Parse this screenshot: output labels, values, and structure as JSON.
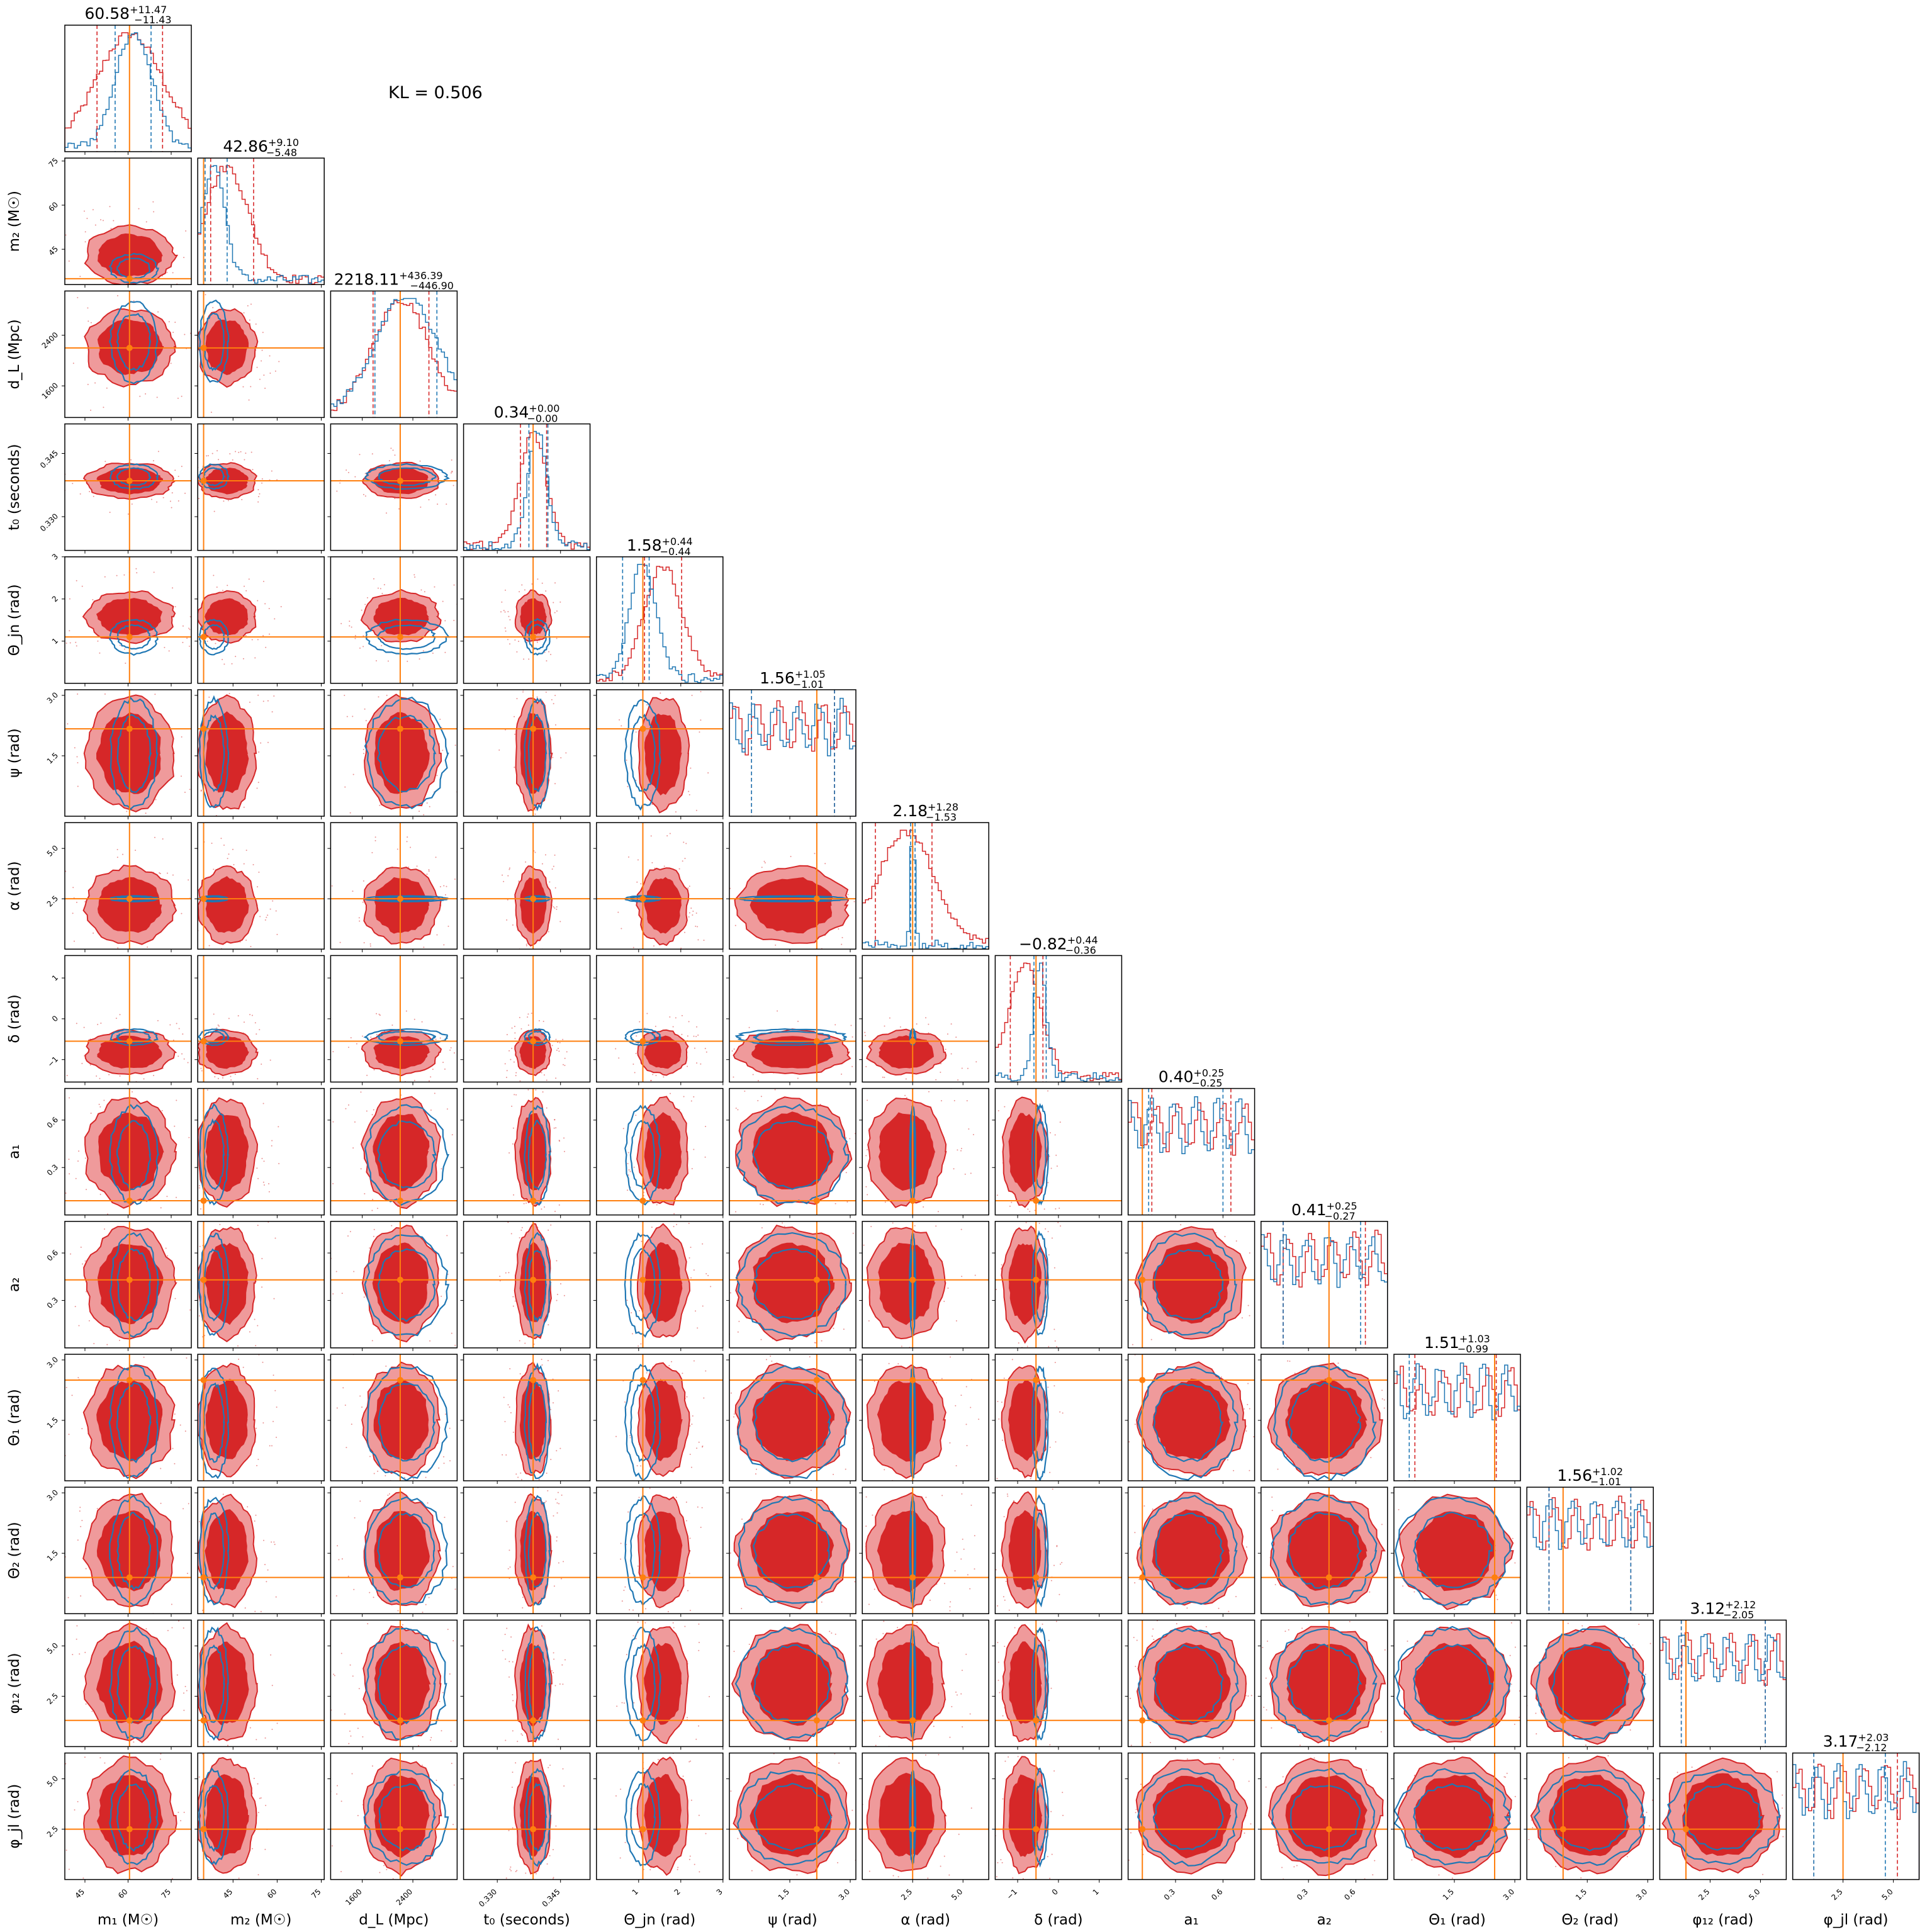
{
  "chart_data": {
    "type": "corner",
    "annotation": "KL = 0.506",
    "colors": {
      "approx": "#d62728",
      "reference": "#1f77b4",
      "truth": "#ff7f0e"
    },
    "parameters": [
      {
        "key": "m1",
        "label": "m₁ (M☉)",
        "center": "60.58",
        "plus": "+11.47",
        "minus": "−11.43",
        "lim": [
          38,
          82
        ],
        "ticks": [
          45,
          60,
          75
        ],
        "ticklabels": [
          "45",
          "60",
          "75"
        ],
        "truth": 60.5,
        "approx_q": [
          49.2,
          60.6,
          72.0
        ],
        "ref_q": [
          55.5,
          62.0,
          68.0
        ]
      },
      {
        "key": "m2",
        "label": "m₂ (M☉)",
        "center": "42.86",
        "plus": "+9.10",
        "minus": "−5.48",
        "lim": [
          33,
          76
        ],
        "ticks": [
          45,
          60,
          75
        ],
        "ticklabels": [
          "45",
          "60",
          "75"
        ],
        "truth": 35.0,
        "approx_q": [
          37.4,
          42.9,
          52.0
        ],
        "ref_q": [
          35.5,
          38.5,
          43.0
        ]
      },
      {
        "key": "dL",
        "label": "d_L (Mpc)",
        "center": "2218.11",
        "plus": "+436.39",
        "minus": "−446.90",
        "lim": [
          1100,
          3100
        ],
        "ticks": [
          1600,
          2400
        ],
        "ticklabels": [
          "1600",
          "2400"
        ],
        "truth": 2200,
        "approx_q": [
          1771,
          2218,
          2654
        ],
        "ref_q": [
          1800,
          2300,
          2780
        ]
      },
      {
        "key": "t0",
        "label": "t₀ (seconds)",
        "center": "0.34",
        "plus": "+0.00",
        "minus": "−0.00",
        "lim": [
          0.322,
          0.352
        ],
        "ticks": [
          0.33,
          0.345
        ],
        "ticklabels": [
          "0.330",
          "0.345"
        ],
        "truth": 0.3385,
        "approx_q": [
          0.3355,
          0.3385,
          0.3417
        ],
        "ref_q": [
          0.3375,
          0.3395,
          0.342
        ]
      },
      {
        "key": "thetajn",
        "label": "Θ_jn (rad)",
        "center": "1.58",
        "plus": "+0.44",
        "minus": "−0.44",
        "lim": [
          0,
          3
        ],
        "ticks": [
          1,
          2,
          3
        ],
        "ticklabels": [
          "1",
          "2",
          "3"
        ],
        "truth": 1.1,
        "approx_q": [
          1.14,
          1.58,
          2.02
        ],
        "ref_q": [
          0.62,
          1.1,
          1.25
        ]
      },
      {
        "key": "psi",
        "label": "ψ (rad)",
        "center": "1.56",
        "plus": "+1.05",
        "minus": "−1.01",
        "lim": [
          0,
          3.14
        ],
        "ticks": [
          1.5,
          3.0
        ],
        "ticklabels": [
          "1.5",
          "3.0"
        ],
        "truth": 2.17,
        "approx_q": [
          0.55,
          1.56,
          2.61
        ],
        "ref_q": [
          0.55,
          1.56,
          2.61
        ]
      },
      {
        "key": "alpha",
        "label": "α (rad)",
        "center": "2.18",
        "plus": "+1.28",
        "minus": "−1.53",
        "lim": [
          0,
          6.28
        ],
        "ticks": [
          2.5,
          5.0
        ],
        "ticklabels": [
          "2.5",
          "5.0"
        ],
        "truth": 2.5,
        "approx_q": [
          0.65,
          2.18,
          3.46
        ],
        "ref_q": [
          2.4,
          2.5,
          2.62
        ]
      },
      {
        "key": "delta",
        "label": "δ (rad)",
        "center": "−0.82",
        "plus": "+0.44",
        "minus": "−0.36",
        "lim": [
          -1.55,
          1.55
        ],
        "ticks": [
          -1,
          0,
          1
        ],
        "ticklabels": [
          "−1",
          "0",
          "1"
        ],
        "truth": -0.55,
        "approx_q": [
          -1.18,
          -0.82,
          -0.38
        ],
        "ref_q": [
          -0.6,
          -0.45,
          -0.3
        ]
      },
      {
        "key": "a1",
        "label": "a₁",
        "center": "0.40",
        "plus": "+0.25",
        "minus": "−0.25",
        "lim": [
          0,
          0.8
        ],
        "ticks": [
          0.3,
          0.6
        ],
        "ticklabels": [
          "0.3",
          "0.6"
        ],
        "truth": 0.09,
        "approx_q": [
          0.15,
          0.4,
          0.65
        ],
        "ref_q": [
          0.13,
          0.38,
          0.6
        ]
      },
      {
        "key": "a2",
        "label": "a₂",
        "center": "0.41",
        "plus": "+0.25",
        "minus": "−0.27",
        "lim": [
          0,
          0.8
        ],
        "ticks": [
          0.3,
          0.6
        ],
        "ticklabels": [
          "0.3",
          "0.6"
        ],
        "truth": 0.43,
        "approx_q": [
          0.14,
          0.41,
          0.66
        ],
        "ref_q": [
          0.14,
          0.4,
          0.63
        ]
      },
      {
        "key": "theta1",
        "label": "Θ₁ (rad)",
        "center": "1.51",
        "plus": "+1.03",
        "minus": "−0.99",
        "lim": [
          0,
          3.14
        ],
        "ticks": [
          1.5,
          3.0
        ],
        "ticklabels": [
          "1.5",
          "3.0"
        ],
        "truth": 2.5,
        "approx_q": [
          0.52,
          1.51,
          2.54
        ],
        "ref_q": [
          0.38,
          1.45,
          2.5
        ]
      },
      {
        "key": "theta2",
        "label": "Θ₂ (rad)",
        "center": "1.56",
        "plus": "+1.02",
        "minus": "−1.01",
        "lim": [
          0,
          3.14
        ],
        "ticks": [
          1.5,
          3.0
        ],
        "ticklabels": [
          "1.5",
          "3.0"
        ],
        "truth": 0.9,
        "approx_q": [
          0.55,
          1.56,
          2.58
        ],
        "ref_q": [
          0.55,
          1.56,
          2.58
        ]
      },
      {
        "key": "phi12",
        "label": "φ₁₂ (rad)",
        "center": "3.12",
        "plus": "+2.12",
        "minus": "−2.05",
        "lim": [
          0,
          6.28
        ],
        "ticks": [
          2.5,
          5.0
        ],
        "ticklabels": [
          "2.5",
          "5.0"
        ],
        "truth": 1.3,
        "approx_q": [
          1.07,
          3.12,
          5.24
        ],
        "ref_q": [
          1.07,
          3.12,
          5.24
        ]
      },
      {
        "key": "phijl",
        "label": "φ_jl (rad)",
        "center": "3.17",
        "plus": "+2.03",
        "minus": "−2.12",
        "lim": [
          0,
          6.28
        ],
        "ticks": [
          2.5,
          5.0
        ],
        "ticklabels": [
          "2.5",
          "5.0"
        ],
        "truth": 2.5,
        "approx_q": [
          1.05,
          3.17,
          5.2
        ],
        "ref_q": [
          1.05,
          3.1,
          4.6
        ]
      }
    ]
  }
}
